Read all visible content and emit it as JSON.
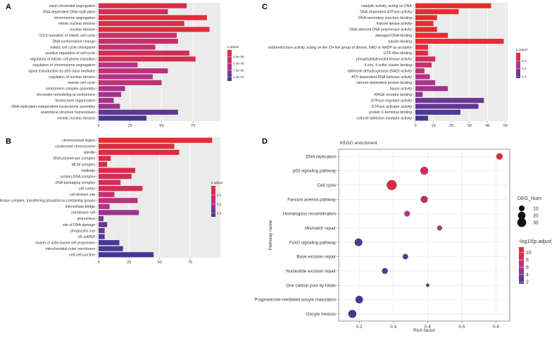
{
  "chart_data": [
    {
      "panel": "A",
      "type": "bar",
      "orientation": "horizontal",
      "categories": [
        "sister chromatid segregation",
        "DNA-dependent DNA replication",
        "chromosome segregation",
        "mitotic nuclear division",
        "nuclear division",
        "G1/S transition of mitotic cell cycle",
        "DNA conformation change",
        "mitotic cell cycle checkpoint",
        "positive regulation of cell cycle",
        "regulation of mitotic cell phase transition",
        "regulation of chromosome segregation",
        "signal transduction by p53 class mediator",
        "regulation of nuclear division",
        "meiotic cell cycle",
        "centromere complex assembly",
        "chromatin remodeling at centromere",
        "kinetochore organization",
        "DNA replication-independent nucleosome assembly",
        "anatomical structure homeostasis",
        "meiotic nuclear division"
      ],
      "values": [
        70,
        55,
        86,
        68,
        88,
        62,
        63,
        45,
        72,
        77,
        31,
        55,
        43,
        50,
        21,
        18,
        12,
        17,
        63,
        38
      ],
      "padj": [
        2e-38,
        3e-38,
        1e-38,
        2.5e-38,
        1e-38,
        4e-38,
        4e-38,
        5e-38,
        3e-38,
        2.5e-38,
        6e-38,
        5e-38,
        6e-38,
        5e-38,
        7e-38,
        7e-38,
        7e-38,
        7.5e-38,
        1e-37,
        1.1e-37
      ],
      "xlim": [
        0,
        95
      ],
      "xticks": [
        0,
        25,
        50,
        75
      ],
      "legend": {
        "title": "p.adjust",
        "labels": [
          "2.5e-38",
          "5.0e-38",
          "7.5e-38",
          "1.0e-37"
        ],
        "colorscale": [
          0,
          1.15e-37
        ],
        "position": "right"
      }
    },
    {
      "panel": "B",
      "type": "bar",
      "orientation": "horizontal",
      "categories": [
        "chromosomal region",
        "condensed chromosome",
        "spindle",
        "DNA polymerase complex",
        "MCM complex",
        "midbody",
        "protein-DNA complex",
        "DNA packaging complex",
        "cell cortex",
        "cell division site",
        "transferase complex, transferring phosphorus-containing groups",
        "intercellular bridge",
        "membrane raft",
        "pronucleus",
        "site of DNA damage",
        "phagocytic cup",
        "U5 snRNP",
        "cluster of actin-based cell projections",
        "mitochondrial outer membrane",
        "cell-cell junction"
      ],
      "values": [
        93,
        62,
        66,
        10,
        7,
        30,
        27,
        18,
        36,
        13,
        32,
        9,
        33,
        4,
        7,
        5,
        5,
        17,
        20,
        45
      ],
      "padj": [
        0.01,
        0.04,
        0.04,
        0.06,
        0.06,
        0.06,
        0.08,
        0.09,
        0.08,
        0.12,
        0.15,
        0.18,
        0.22,
        0.26,
        0.28,
        0.29,
        0.3,
        0.32,
        0.32,
        0.33
      ],
      "xlim": [
        0,
        98
      ],
      "xticks": [
        0,
        25,
        50,
        75
      ],
      "legend": {
        "title": "p.adjust",
        "labels": [
          "0.1",
          "0.2",
          "0.3"
        ],
        "colorscale": [
          0,
          0.34
        ],
        "position": "right"
      }
    },
    {
      "panel": "C",
      "type": "bar",
      "orientation": "horizontal",
      "categories": [
        "catalytic activity, acting on DNA",
        "DNA-dependent ATPase activity",
        "DNA secondary structure binding",
        "histone kinase activity",
        "DNA-directed DNA polymerase activity",
        "damaged DNA binding",
        "tubulin binding",
        "oxidoreductase activity, acting on the CH-NH group of donors, NAD or NADP as acceptor",
        "GTP-Rho binding",
        "phosphatidylinositol kinase activity",
        "4 iron, 4 sulfur cluster binding",
        "aldehyde dehydrogenase (NAD) activity",
        "ATP-dependent DNA helicase activity",
        "calcium-dependent protein binding",
        "lipase activity",
        "RAGE receptor binding",
        "GTPase regulator activity",
        "GTPase activator activity",
        "protein C-terminus binding",
        "cell-cell adhesion mediator activity"
      ],
      "values": [
        42,
        24,
        12,
        10,
        12,
        18,
        49,
        7,
        7,
        11,
        9,
        5,
        8,
        11,
        18,
        4,
        38,
        35,
        25,
        7
      ],
      "padj": [
        0.001,
        0.005,
        0.01,
        0.01,
        0.01,
        0.01,
        0.02,
        0.03,
        0.04,
        0.08,
        0.12,
        0.12,
        0.18,
        0.18,
        0.2,
        0.22,
        0.26,
        0.27,
        0.29,
        0.31
      ],
      "xlim": [
        0,
        50
      ],
      "xticks": [
        0,
        10,
        20,
        30,
        40,
        50
      ],
      "legend": {
        "title": "p.adjust",
        "labels": [
          "0.1",
          "0.2",
          "0.3"
        ],
        "colorscale": [
          0,
          0.32
        ],
        "position": "right"
      }
    },
    {
      "panel": "D",
      "type": "scatter",
      "title": "KEGG enrichment",
      "xlabel": "Rich factor",
      "ylabel": "Pathway name",
      "categories": [
        "DNA replication",
        "p53 signaling pathway",
        "Cell cycle",
        "Fanconi anemia pathway",
        "Homologous recombination",
        "Mismatch repair",
        "FoxO signaling pathway",
        "Base excision repair",
        "Nucleotide excision repair",
        "One carbon pool by folate",
        "Progesterone-mediated oocyte maturation",
        "Oocyte meiosis"
      ],
      "x": [
        0.61,
        0.39,
        0.295,
        0.39,
        0.34,
        0.435,
        0.198,
        0.335,
        0.275,
        0.4,
        0.2,
        0.18
      ],
      "size": [
        12,
        21,
        37,
        16,
        9,
        6,
        20,
        8,
        10,
        2,
        19,
        22
      ],
      "neglog10_padj": [
        11,
        9,
        10,
        8,
        6,
        6,
        2.5,
        3,
        3,
        4,
        2,
        2
      ],
      "xlim": [
        0.14,
        0.64
      ],
      "xticks": [
        0.2,
        0.3,
        0.4,
        0.5,
        0.6
      ],
      "legend_size": {
        "title": "DEG_Num",
        "labels": [
          10,
          20,
          30
        ]
      },
      "legend_color": {
        "title": "−log10(p.adjust)",
        "labels": [
          2,
          4,
          6,
          8,
          10
        ],
        "colorscale": [
          1.5,
          11.5
        ]
      }
    }
  ]
}
